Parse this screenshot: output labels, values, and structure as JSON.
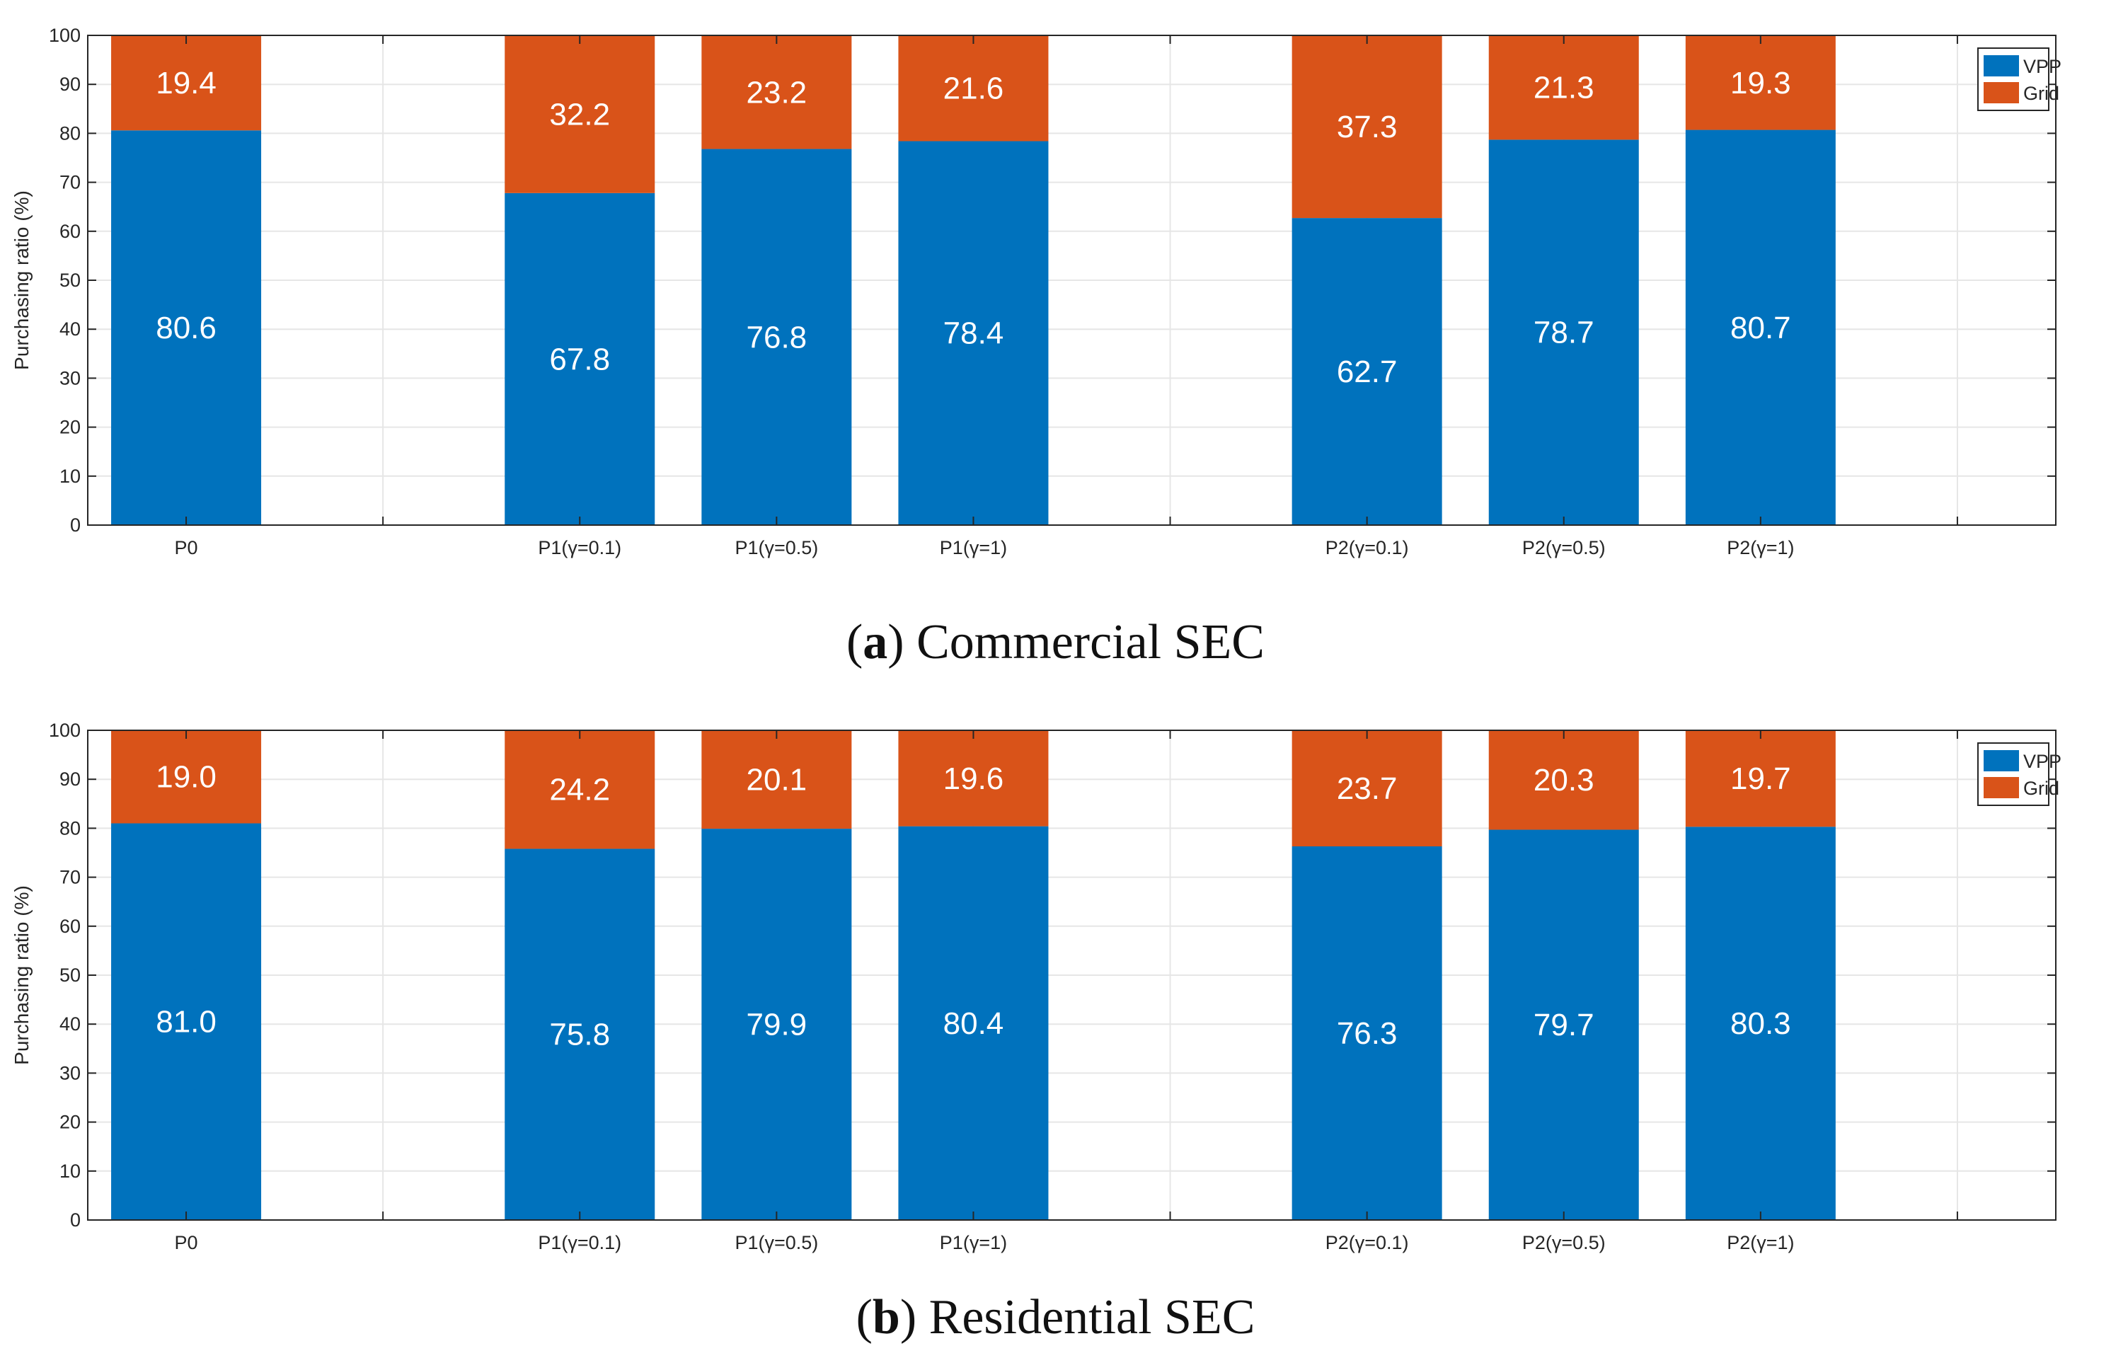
{
  "colors": {
    "vpp": "#0072BD",
    "grid": "#D95319"
  },
  "chart_data": [
    {
      "type": "bar",
      "stacked": true,
      "categories": [
        "P0",
        "",
        "P1(γ=0.1)",
        "P1(γ=0.5)",
        "P1(γ=1)",
        "",
        "P2(γ=0.1)",
        "P2(γ=0.5)",
        "P2(γ=1)",
        ""
      ],
      "series": [
        {
          "name": "VPP",
          "values": [
            80.6,
            null,
            67.8,
            76.8,
            78.4,
            null,
            62.7,
            78.7,
            80.7,
            null
          ]
        },
        {
          "name": "Grid",
          "values": [
            19.4,
            null,
            32.2,
            23.2,
            21.6,
            null,
            37.3,
            21.3,
            19.3,
            null
          ]
        }
      ],
      "ylabel": "Purchasing ratio (%)",
      "xlabel": "",
      "ylim": [
        0,
        100
      ],
      "yticks": [
        0,
        10,
        20,
        30,
        40,
        50,
        60,
        70,
        80,
        90,
        100
      ],
      "grid": true,
      "legend": "top-right",
      "caption_letter": "a",
      "caption_text": "Commercial SEC"
    },
    {
      "type": "bar",
      "stacked": true,
      "categories": [
        "P0",
        "",
        "P1(γ=0.1)",
        "P1(γ=0.5)",
        "P1(γ=1)",
        "",
        "P2(γ=0.1)",
        "P2(γ=0.5)",
        "P2(γ=1)",
        ""
      ],
      "series": [
        {
          "name": "VPP",
          "values": [
            81.0,
            null,
            75.8,
            79.9,
            80.4,
            null,
            76.3,
            79.7,
            80.3,
            null
          ]
        },
        {
          "name": "Grid",
          "values": [
            19.0,
            null,
            24.2,
            20.1,
            19.6,
            null,
            23.7,
            20.3,
            19.7,
            null
          ]
        }
      ],
      "ylabel": "Purchasing ratio (%)",
      "xlabel": "",
      "ylim": [
        0,
        100
      ],
      "yticks": [
        0,
        10,
        20,
        30,
        40,
        50,
        60,
        70,
        80,
        90,
        100
      ],
      "grid": true,
      "legend": "top-right",
      "caption_letter": "b",
      "caption_text": "Residential SEC"
    }
  ]
}
